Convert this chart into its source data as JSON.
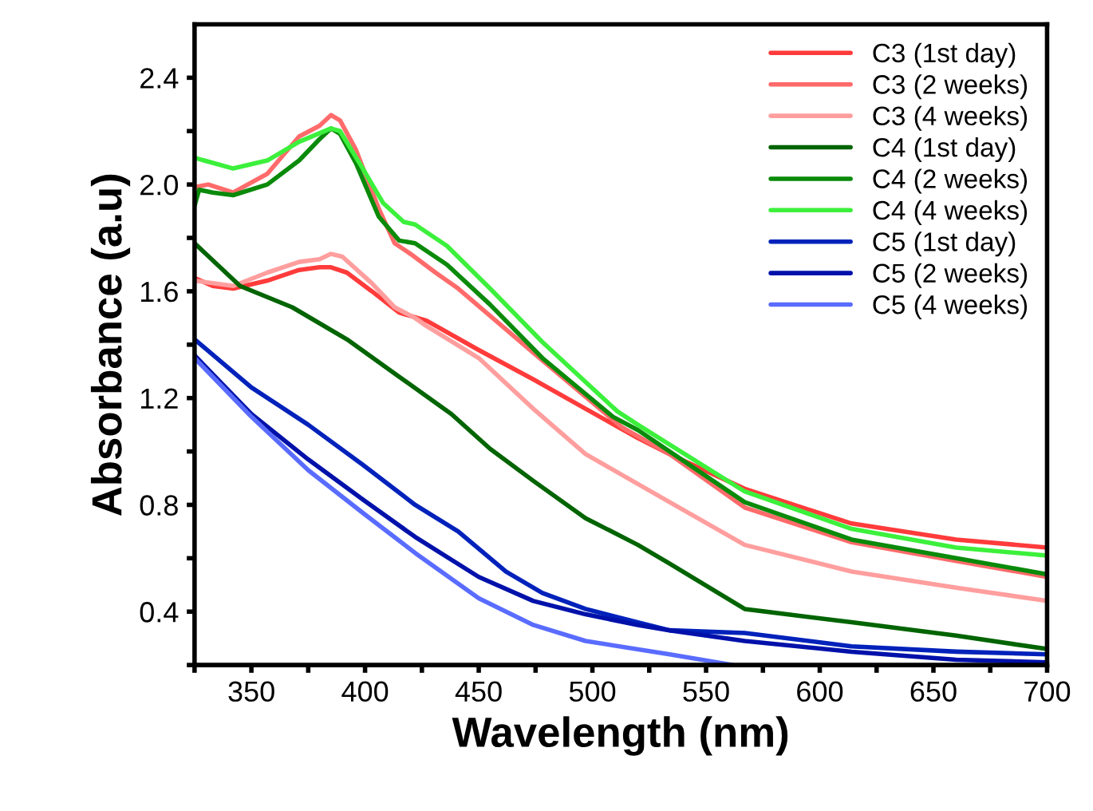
{
  "chart_data": {
    "type": "line",
    "xlabel": "Wavelength (nm)",
    "ylabel": "Absorbance (a.u)",
    "xlim": [
      325,
      700
    ],
    "ylim": [
      0.2,
      2.6
    ],
    "xticks": [
      {
        "value": 325,
        "label": null
      },
      350,
      {
        "value": 375,
        "label": null
      },
      400,
      {
        "value": 425,
        "label": null
      },
      450,
      {
        "value": 475,
        "label": null
      },
      500,
      {
        "value": 525,
        "label": null
      },
      550,
      {
        "value": 575,
        "label": null
      },
      600,
      {
        "value": 625,
        "label": null
      },
      650,
      {
        "value": 675,
        "label": null
      },
      700
    ],
    "yticks": [
      {
        "value": 0.2,
        "label": null
      },
      0.4,
      {
        "value": 0.6,
        "label": null
      },
      0.8,
      {
        "value": 1.0,
        "label": null
      },
      1.2,
      {
        "value": 1.4,
        "label": null
      },
      1.6,
      {
        "value": 1.8,
        "label": null
      },
      {
        "value": 2.0,
        "label": "2.0"
      },
      {
        "value": 2.2,
        "label": null
      },
      2.4
    ],
    "grid": false,
    "legend": "top right",
    "marker": "none",
    "line_style": "solid",
    "series": [
      {
        "name": "C3 (1st day)",
        "color": "#ff3b3b",
        "x": [
          325,
          333,
          342,
          357,
          371,
          380,
          385,
          392,
          403,
          415,
          427,
          450,
          474,
          497,
          520,
          534,
          567,
          614,
          660,
          700
        ],
        "values": [
          1.65,
          1.62,
          1.61,
          1.64,
          1.68,
          1.69,
          1.69,
          1.67,
          1.6,
          1.52,
          1.49,
          1.38,
          1.27,
          1.16,
          1.05,
          0.99,
          0.86,
          0.73,
          0.67,
          0.64
        ]
      },
      {
        "name": "C3 (2 weeks)",
        "color": "#ff6b6b",
        "x": [
          325,
          331,
          342,
          357,
          371,
          380,
          385,
          389,
          396,
          406,
          413,
          420,
          431,
          441,
          474,
          513,
          534,
          567,
          614,
          660,
          700
        ],
        "values": [
          1.99,
          2.0,
          1.97,
          2.04,
          2.18,
          2.22,
          2.26,
          2.24,
          2.13,
          1.91,
          1.78,
          1.74,
          1.67,
          1.61,
          1.37,
          1.09,
          0.99,
          0.79,
          0.66,
          0.59,
          0.53
        ]
      },
      {
        "name": "C3 (4 weeks)",
        "color": "#ff9e9e",
        "x": [
          325,
          342,
          357,
          371,
          380,
          385,
          390,
          403,
          413,
          422,
          427,
          450,
          474,
          497,
          534,
          567,
          614,
          660,
          700
        ],
        "values": [
          1.64,
          1.62,
          1.67,
          1.71,
          1.72,
          1.74,
          1.73,
          1.63,
          1.54,
          1.5,
          1.47,
          1.35,
          1.16,
          0.99,
          0.81,
          0.65,
          0.55,
          0.49,
          0.44
        ]
      },
      {
        "name": "C4 (1st day)",
        "color": "#006400",
        "x": [
          325,
          345,
          368,
          392,
          415,
          438,
          455,
          474,
          497,
          520,
          534,
          567,
          614,
          660,
          700
        ],
        "values": [
          1.78,
          1.62,
          1.54,
          1.42,
          1.28,
          1.14,
          1.01,
          0.89,
          0.75,
          0.65,
          0.58,
          0.41,
          0.36,
          0.31,
          0.26
        ]
      },
      {
        "name": "C4 (2 weeks)",
        "color": "#0a8a0a",
        "x": [
          325,
          327,
          333,
          342,
          357,
          371,
          380,
          385,
          389,
          396,
          406,
          415,
          422,
          436,
          455,
          478,
          509,
          520,
          567,
          614,
          660,
          700
        ],
        "values": [
          1.92,
          1.98,
          1.97,
          1.96,
          2.0,
          2.09,
          2.17,
          2.21,
          2.19,
          2.08,
          1.88,
          1.79,
          1.78,
          1.7,
          1.55,
          1.35,
          1.13,
          1.08,
          0.81,
          0.67,
          0.6,
          0.54
        ]
      },
      {
        "name": "C4 (4 weeks)",
        "color": "#3cf03c",
        "x": [
          325,
          342,
          357,
          371,
          385,
          389,
          399,
          408,
          417,
          422,
          436,
          455,
          478,
          511,
          520,
          567,
          614,
          660,
          700
        ],
        "values": [
          2.1,
          2.06,
          2.09,
          2.16,
          2.21,
          2.2,
          2.06,
          1.93,
          1.86,
          1.85,
          1.77,
          1.61,
          1.41,
          1.15,
          1.1,
          0.85,
          0.71,
          0.64,
          0.61
        ]
      },
      {
        "name": "C5 (1st day)",
        "color": "#0022bb",
        "x": [
          325,
          350,
          375,
          399,
          422,
          441,
          462,
          478,
          497,
          520,
          534,
          567,
          614,
          660,
          700
        ],
        "values": [
          1.42,
          1.24,
          1.1,
          0.95,
          0.8,
          0.7,
          0.55,
          0.47,
          0.41,
          0.36,
          0.33,
          0.32,
          0.27,
          0.25,
          0.24
        ]
      },
      {
        "name": "C5 (2 weeks)",
        "color": "#0011aa",
        "x": [
          325,
          350,
          375,
          399,
          422,
          450,
          474,
          497,
          520,
          534,
          567,
          614,
          660,
          700
        ],
        "values": [
          1.36,
          1.14,
          0.97,
          0.82,
          0.68,
          0.53,
          0.44,
          0.39,
          0.35,
          0.33,
          0.29,
          0.25,
          0.22,
          0.21
        ]
      },
      {
        "name": "C5 (4 weeks)",
        "color": "#5a6cff",
        "x": [
          325,
          350,
          375,
          399,
          422,
          450,
          474,
          497,
          534,
          562
        ],
        "values": [
          1.35,
          1.13,
          0.93,
          0.77,
          0.62,
          0.45,
          0.35,
          0.29,
          0.24,
          0.2
        ]
      }
    ]
  }
}
